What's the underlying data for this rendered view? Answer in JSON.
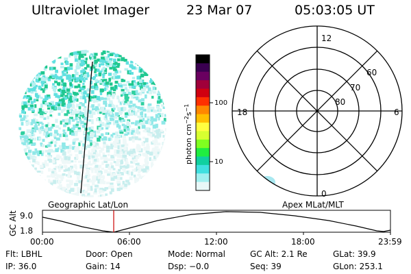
{
  "header": {
    "title": "Ultraviolet Imager",
    "date": "23 Mar 07",
    "time": "05:03:05 UT"
  },
  "colorbar": {
    "unit": "photon cm",
    "unit_exp1": "−2",
    "unit_mid": "s",
    "unit_exp2": "−1",
    "ticks": [
      "100",
      "10"
    ],
    "colors": [
      "#000000",
      "#3a0050",
      "#6a0060",
      "#a0003a",
      "#d00010",
      "#ff3000",
      "#ff8800",
      "#ffc000",
      "#ffff40",
      "#d8ff30",
      "#80ff20",
      "#20ee40",
      "#10d0a0",
      "#40e0e0",
      "#a0f0f0",
      "#e8f8f8"
    ]
  },
  "polar": {
    "mlt_labels": {
      "top": "12",
      "left": "18",
      "right": "6",
      "bottom": "0"
    },
    "lat_labels": [
      "60",
      "70",
      "80"
    ]
  },
  "panel_labels": {
    "left": "Geographic Lat/Lon",
    "right": "Apex MLat/MLT"
  },
  "timeline": {
    "ylabel": "GC Alt",
    "y_ticks": [
      "9.0",
      "1.8"
    ],
    "x_ticks": [
      "00:00",
      "06:00",
      "12:00",
      "18:00",
      "23:59"
    ],
    "curve_color": "#000000",
    "marker_color": "#cc0000"
  },
  "info": {
    "flt": "Flt: LBHL",
    "door": "Door: Open",
    "mode": "Mode: Normal",
    "gcalt": "GC Alt: 2.1 Re",
    "glat": "GLat:  39.9",
    "ip": "IP: 36.0",
    "gain": "Gain: 14",
    "dsp": "Dsp:   −0.0",
    "seq": "Seq: 39",
    "glon": "GLon: 253.1"
  }
}
